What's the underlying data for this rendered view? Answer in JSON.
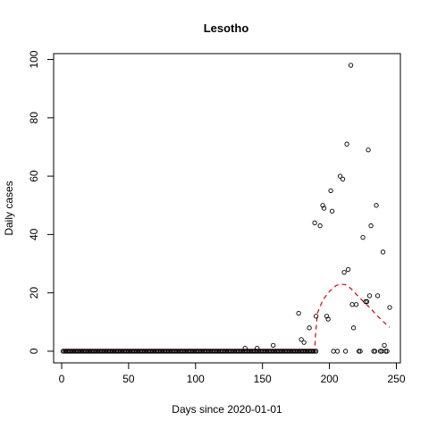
{
  "chart_data": {
    "type": "scatter",
    "title": "Lesotho",
    "xlabel": "Days since 2020-01-01",
    "ylabel": "Daily cases",
    "xlim": [
      -6,
      253
    ],
    "ylim": [
      -4,
      102
    ],
    "xticks": [
      0,
      50,
      100,
      150,
      200,
      250
    ],
    "yticks": [
      0,
      20,
      40,
      60,
      80,
      100
    ],
    "grid": false,
    "legend": "none",
    "zero_run": {
      "from": 1,
      "to": 190,
      "value": 0
    },
    "points": [
      [
        137,
        1
      ],
      [
        146,
        1
      ],
      [
        158,
        2
      ],
      [
        177,
        13
      ],
      [
        179,
        4
      ],
      [
        181,
        3
      ],
      [
        185,
        8
      ],
      [
        189,
        44
      ],
      [
        190,
        12
      ],
      [
        193,
        43
      ],
      [
        195,
        50
      ],
      [
        196,
        49
      ],
      [
        198,
        12
      ],
      [
        199,
        11
      ],
      [
        201,
        55
      ],
      [
        202,
        48
      ],
      [
        203,
        0
      ],
      [
        206,
        0
      ],
      [
        208,
        60
      ],
      [
        210,
        59
      ],
      [
        211,
        27
      ],
      [
        212,
        0
      ],
      [
        213,
        71
      ],
      [
        214,
        28
      ],
      [
        216,
        98
      ],
      [
        217,
        16
      ],
      [
        218,
        8
      ],
      [
        220,
        16
      ],
      [
        222,
        0
      ],
      [
        223,
        0
      ],
      [
        225,
        39
      ],
      [
        227,
        17
      ],
      [
        228,
        17
      ],
      [
        229,
        69
      ],
      [
        230,
        19
      ],
      [
        231,
        43
      ],
      [
        233,
        0
      ],
      [
        234,
        0
      ],
      [
        235,
        50
      ],
      [
        236,
        19
      ],
      [
        238,
        0
      ],
      [
        239,
        0
      ],
      [
        240,
        34
      ],
      [
        241,
        2
      ],
      [
        242,
        0
      ],
      [
        243,
        0
      ],
      [
        245,
        15
      ]
    ],
    "series": [
      {
        "type": "line",
        "style": "dashed",
        "color": "#e00000",
        "x": [
          1,
          189,
          189.5,
          191,
          195,
          200,
          205,
          208,
          212,
          216,
          220,
          225,
          230,
          235,
          240,
          245
        ],
        "y": [
          0,
          0,
          5,
          13,
          17.5,
          20.5,
          22.5,
          23,
          22.8,
          21.5,
          19.5,
          17.2,
          15,
          12.5,
          10.2,
          8.2
        ]
      }
    ]
  }
}
